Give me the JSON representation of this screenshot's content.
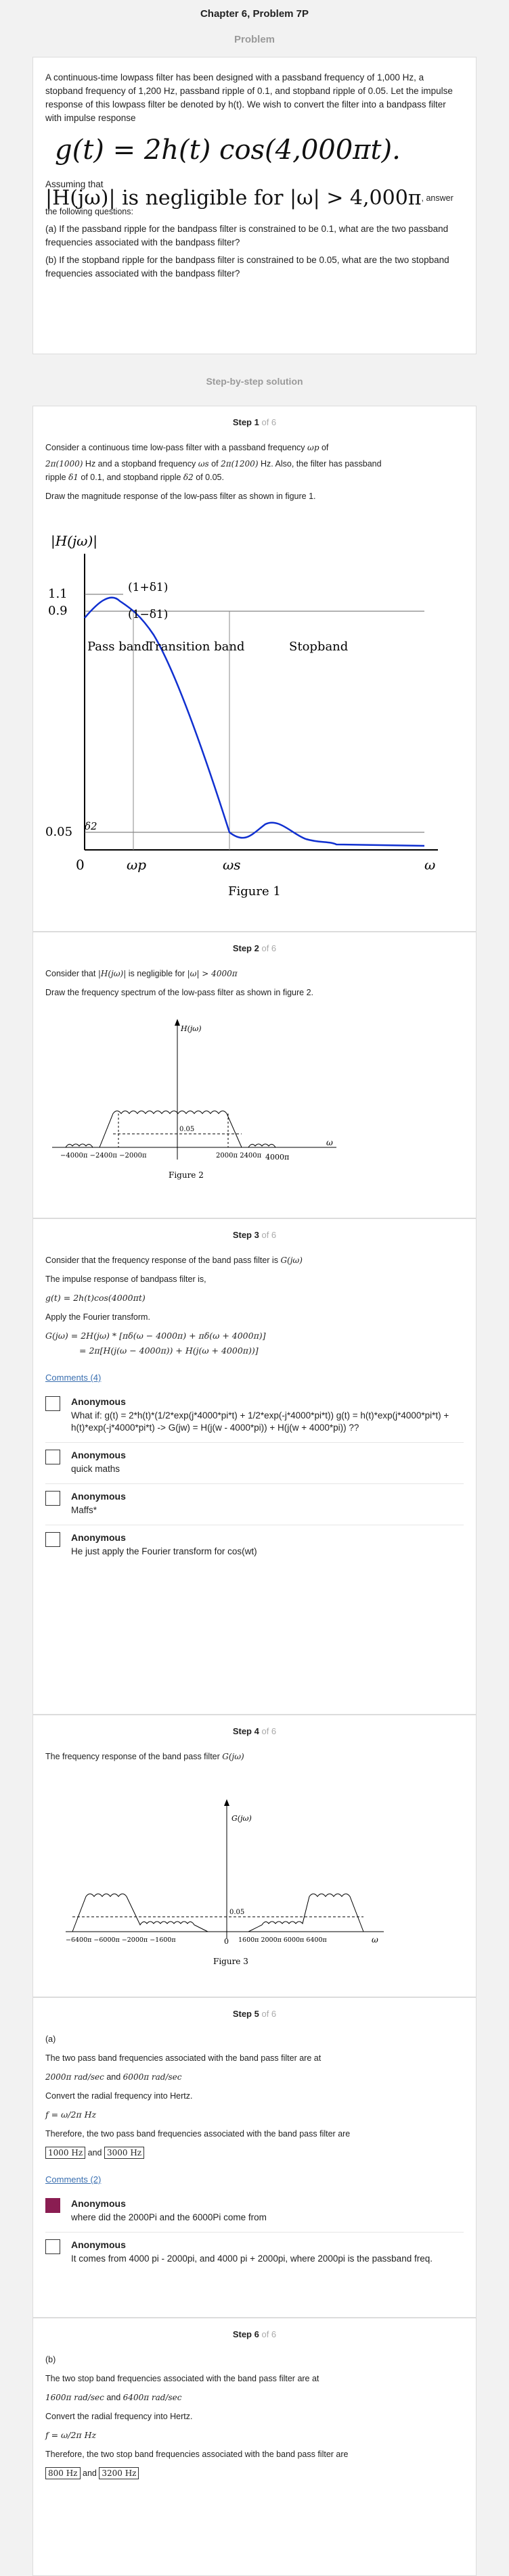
{
  "header": {
    "chapter_title": "Chapter 6, Problem 7P",
    "problem_label": "Problem",
    "solution_label": "Step-by-step solution"
  },
  "problem": {
    "intro": "A continuous-time lowpass filter has been designed with a passband frequency of 1,000 Hz, a stopband frequency of 1,200 Hz, passband ripple of 0.1, and stopband ripple of 0.05. Let the impulse response of this lowpass filter be denoted by h(t). We wish to convert the filter into a bandpass filter with impulse response",
    "equation": "g(t) = 2h(t) cos(4,000πt).",
    "assuming": "Assuming that",
    "assume_eq": "|H(jω)| is negligible for |ω| > 4,000π",
    "assume_tail": ", answer the following questions:",
    "qa": "(a) If the passband ripple for the bandpass filter is constrained to be 0.1, what are the two passband frequencies associated with the bandpass filter?",
    "qb": "(b) If the stopband ripple for the bandpass filter is constrained to be 0.05, what are the two stopband frequencies associated with the bandpass filter?"
  },
  "steps": [
    {
      "label": "Step 1",
      "of": "of 6",
      "p1": "Consider a continuous time low-pass filter with a passband frequency",
      "p1_math": "ωp",
      "p1_b": "of",
      "p2_math_a": "2π(1000)",
      "p2_a": "Hz and a stopband frequency",
      "p2_math_b": "ωs",
      "p2_b": "of",
      "p2_math_c": "2π(1200)",
      "p2_c": "Hz. Also, the filter has passband",
      "p3_a": "ripple",
      "p3_math_a": "δ1",
      "p3_b": "of 0.1, and stopband ripple",
      "p3_math_b": "δ2",
      "p3_c": "of 0.05.",
      "p4": "Draw the magnitude response of the low-pass filter as shown in figure 1.",
      "fig": {
        "ylabel": "|H(jω)|",
        "y11": "1.1",
        "y09": "0.9",
        "y005": "0.05",
        "d1p": "(1+δ1)",
        "d1m": "(1−δ1)",
        "d2": "δ2",
        "passband": "Pass band",
        "transition": "Transition band",
        "stopband": "Stopband",
        "zero": "0",
        "wp": "ωp",
        "ws": "ωs",
        "w": "ω",
        "caption": "Figure 1"
      }
    },
    {
      "label": "Step 2",
      "of": "of 6",
      "p1_a": "Consider that",
      "p1_math_a": "|H(jω)|",
      "p1_b": "is negligible for",
      "p1_math_b": "|ω| > 4000π",
      "p2": "Draw the frequency spectrum of the low-pass filter as shown in figure 2.",
      "fig": {
        "ylabel": "H(jω)",
        "mid": "0.05",
        "xneg": "−4000π  −2400π −2000π",
        "xpos": "2000π 2400π",
        "xend": "4000π",
        "w": "ω",
        "caption": "Figure 2"
      }
    },
    {
      "label": "Step 3",
      "of": "of 6",
      "p1": "Consider that the frequency response of the band pass filter is",
      "p1_math": "G(jω)",
      "p2": "The impulse response of bandpass filter is,",
      "eq1": "g(t) = 2h(t)cos(4000πt)",
      "p3": "Apply the Fourier transform.",
      "eq2": "G(jω) = 2H(jω) * [πδ(ω − 4000π) + πδ(ω + 4000π)]",
      "eq3": "= 2π[H(j(ω − 4000π)) + H(j(ω + 4000π))]",
      "comments_link": "Comments (4)",
      "comments": [
        {
          "name": "Anonymous",
          "text": "What if: g(t) = 2*h(t)*(1/2*exp(j*4000*pi*t) + 1/2*exp(-j*4000*pi*t)) g(t) = h(t)*exp(j*4000*pi*t) + h(t)*exp(-j*4000*pi*t) -> G(jw) = H(j(w - 4000*pi)) + H(j(w + 4000*pi)) ??"
        },
        {
          "name": "Anonymous",
          "text": "quick maths"
        },
        {
          "name": "Anonymous",
          "text": "Maffs*"
        },
        {
          "name": "Anonymous",
          "text": "He just apply the Fourier transform for cos(wt)"
        }
      ]
    },
    {
      "label": "Step 4",
      "of": "of 6",
      "p1": "The frequency response of the band pass filter",
      "p1_math": "G(jω)",
      "fig": {
        "ylabel": "G(jω)",
        "mid": "0.05",
        "xneg": "−6400π −6000π −2000π −1600π",
        "zero": "0",
        "xpos": "1600π 2000π 6000π 6400π",
        "w": "ω",
        "caption": "Figure 3"
      }
    },
    {
      "label": "Step 5",
      "of": "of 6",
      "part": "(a)",
      "p1": "The two pass band frequencies associated with the band pass filter are at",
      "freq_a": "2000π rad/sec",
      "and": "and",
      "freq_b": "6000π rad/sec",
      "p2": "Convert the radial frequency into Hertz.",
      "formula": "f = ω/2π Hz",
      "p3": "Therefore, the two pass band frequencies associated with the band pass filter are",
      "ans_a": "1000 Hz",
      "ans_b": "3000 Hz",
      "comments_link": "Comments (2)",
      "comments": [
        {
          "name": "Anonymous",
          "text": "where did the 2000Pi and the 6000Pi come from"
        },
        {
          "name": "Anonymous",
          "text": "It comes from 4000 pi - 2000pi, and 4000 pi + 2000pi, where 2000pi is the passband freq."
        }
      ]
    },
    {
      "label": "Step 6",
      "of": "of 6",
      "part": "(b)",
      "p1": "The two stop band frequencies associated with the band pass filter are at",
      "freq_a": "1600π rad/sec",
      "and": "and",
      "freq_b": "6400π rad/sec",
      "p2": "Convert the radial frequency into Hertz.",
      "formula": "f = ω/2π Hz",
      "p3": "Therefore, the two stop band frequencies associated with the band pass filter are",
      "ans_a": "800 Hz",
      "ans_b": "3200 Hz"
    }
  ]
}
